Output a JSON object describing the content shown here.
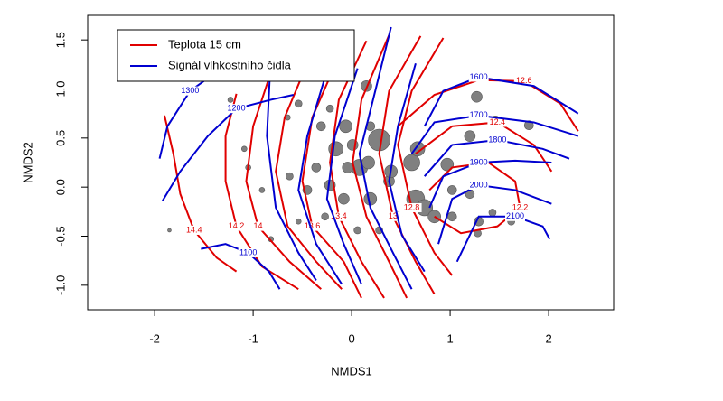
{
  "chart_data": {
    "type": "scatter",
    "xlabel": "NMDS1",
    "ylabel": "NMDS2",
    "xlim": [
      -2.68,
      2.66
    ],
    "ylim": [
      -1.25,
      1.75
    ],
    "xticks": [
      -2,
      -1,
      0,
      1,
      2
    ],
    "yticks": [
      {
        "value": -1,
        "label": "-1.0"
      },
      -0.5,
      {
        "value": 0,
        "label": "0.0"
      },
      0.5,
      {
        "value": 1,
        "label": "1.0"
      },
      1.5
    ],
    "legend": "top-left",
    "points": {
      "color": "#808080",
      "x": [
        0.28,
        0.61,
        0.97,
        1.2,
        1.27,
        1.46,
        1.8,
        0.67,
        0.15,
        -0.06,
        -0.16,
        0.08,
        0.17,
        -0.04,
        -0.36,
        -0.31,
        -0.22,
        -0.54,
        -1.23,
        -1.09,
        -0.91,
        -0.63,
        -0.45,
        -0.22,
        -0.08,
        0.19,
        0.38,
        0.65,
        0.74,
        0.84,
        1.02,
        1.2,
        1.29,
        1.43,
        1.62,
        1.28,
        0.47,
        -0.27,
        -0.54,
        -0.82,
        -1.05,
        0.28,
        0.06,
        0.01,
        0.4,
        -0.65,
        -1.85,
        1.02,
        0.19
      ],
      "y": [
        0.48,
        0.25,
        0.23,
        0.52,
        0.92,
        0.68,
        0.63,
        0.39,
        1.03,
        0.62,
        0.39,
        0.2,
        0.25,
        0.2,
        0.2,
        0.62,
        0.8,
        0.85,
        0.89,
        0.39,
        -0.03,
        0.11,
        -0.03,
        0.02,
        -0.12,
        -0.12,
        0.06,
        -0.12,
        -0.21,
        -0.3,
        -0.03,
        -0.07,
        -0.35,
        -0.26,
        -0.35,
        -0.47,
        -0.3,
        -0.3,
        -0.35,
        -0.53,
        0.2,
        -0.44,
        -0.44,
        0.43,
        0.16,
        0.71,
        -0.44,
        -0.3,
        0.62
      ],
      "size": [
        12,
        9,
        7,
        6,
        6,
        5,
        5,
        8,
        6,
        7,
        8,
        9,
        7,
        6,
        5,
        5,
        4,
        4,
        3,
        3,
        3,
        4,
        5,
        6,
        6,
        7,
        6,
        10,
        9,
        7,
        5,
        5,
        5,
        4,
        4,
        4,
        5,
        4,
        3,
        3,
        3,
        4,
        4,
        6,
        7,
        3,
        2,
        5,
        5
      ]
    },
    "series": [
      {
        "name": "Teplota 15 cm",
        "color": "#e00000",
        "lines": [
          {
            "label": "14.4",
            "x": [
              -1.9,
              -1.81,
              -1.74,
              -1.6,
              -1.37,
              -1.17
            ],
            "y": [
              0.73,
              0.34,
              -0.07,
              -0.44,
              -0.72,
              -0.86
            ]
          },
          {
            "label": "14.2",
            "x": [
              -1.17,
              -1.28,
              -1.28,
              -1.17,
              -0.91,
              -0.54
            ],
            "y": [
              0.95,
              0.52,
              0.06,
              -0.4,
              -0.81,
              -1.04
            ]
          },
          {
            "label": "14",
            "x": [
              -0.82,
              -1.0,
              -1.07,
              -0.95,
              -0.63,
              -0.31
            ],
            "y": [
              1.17,
              0.62,
              0.06,
              -0.4,
              -0.76,
              -1.04
            ]
          },
          {
            "label": null,
            "x": [
              -0.45,
              -0.68,
              -0.77,
              -0.65,
              -0.36,
              -0.1
            ],
            "y": [
              1.26,
              0.71,
              0.16,
              -0.4,
              -0.76,
              -1.04
            ]
          },
          {
            "label": "13.6",
            "x": [
              -0.13,
              -0.4,
              -0.5,
              -0.4,
              -0.08,
              0.1
            ],
            "y": [
              1.33,
              0.71,
              0.06,
              -0.4,
              -0.76,
              -1.13
            ]
          },
          {
            "label": "13.4",
            "x": [
              0.15,
              -0.13,
              -0.22,
              -0.13,
              0.1,
              0.33
            ],
            "y": [
              1.49,
              0.89,
              0.25,
              -0.3,
              -0.76,
              -1.13
            ]
          },
          {
            "label": null,
            "x": [
              0.38,
              0.1,
              0.01,
              0.15,
              0.38,
              0.56
            ],
            "y": [
              1.55,
              0.89,
              0.25,
              -0.3,
              -0.76,
              -1.13
            ]
          },
          {
            "label": "13",
            "x": [
              0.7,
              0.38,
              0.28,
              0.42,
              0.65,
              0.84
            ],
            "y": [
              1.54,
              0.98,
              0.34,
              -0.3,
              -0.76,
              -1.09
            ]
          },
          {
            "label": "12.8",
            "x": [
              0.93,
              0.61,
              0.47,
              0.61,
              0.84,
              1.02
            ],
            "y": [
              1.52,
              0.98,
              0.43,
              -0.21,
              -0.67,
              -0.9
            ]
          },
          {
            "label": "12.6",
            "x": [
              0.47,
              0.84,
              1.29,
              1.75,
              2.12,
              2.3
            ],
            "y": [
              0.62,
              0.94,
              1.09,
              1.08,
              0.85,
              0.57
            ]
          },
          {
            "label": "12.4",
            "x": [
              0.65,
              1.02,
              1.48,
              1.85,
              2.03
            ],
            "y": [
              0.34,
              0.62,
              0.66,
              0.43,
              0.16
            ]
          },
          {
            "label": "12.2",
            "x": [
              0.79,
              1.02,
              1.39,
              1.66,
              1.71,
              1.48,
              1.11,
              0.84
            ],
            "y": [
              -0.03,
              0.2,
              0.25,
              0.06,
              -0.21,
              -0.4,
              -0.47,
              -0.3
            ]
          }
        ]
      },
      {
        "name": "Signál vlhkostního čidla",
        "color": "#0000d0",
        "lines": [
          {
            "label": "1100",
            "x": [
              -1.53,
              -1.28,
              -1.05,
              -0.84,
              -0.73
            ],
            "y": [
              -0.63,
              -0.58,
              -0.67,
              -0.86,
              -1.04
            ]
          },
          {
            "label": "1200",
            "x": [
              -1.92,
              -1.74,
              -1.46,
              -1.17,
              -0.82,
              -0.59
            ],
            "y": [
              -0.14,
              0.16,
              0.52,
              0.8,
              0.89,
              0.94
            ]
          },
          {
            "label": "1300",
            "x": [
              -1.95,
              -1.87,
              -1.64,
              -1.32
            ],
            "y": [
              0.29,
              0.62,
              0.98,
              1.21
            ]
          },
          {
            "label": null,
            "x": [
              -0.82,
              -0.86,
              -0.77,
              -0.54,
              -0.36
            ],
            "y": [
              1.35,
              0.52,
              -0.21,
              -0.67,
              -0.95
            ]
          },
          {
            "label": null,
            "x": [
              -0.27,
              -0.45,
              -0.54,
              -0.36,
              -0.1
            ],
            "y": [
              1.12,
              0.52,
              -0.03,
              -0.58,
              -0.99
            ]
          },
          {
            "label": null,
            "x": [
              0.06,
              -0.17,
              -0.25,
              -0.08,
              0.1
            ],
            "y": [
              1.21,
              0.52,
              -0.12,
              -0.58,
              -0.99
            ]
          },
          {
            "label": null,
            "x": [
              0.4,
              0.24,
              0.08,
              0.19,
              0.42,
              0.61
            ],
            "y": [
              1.63,
              0.98,
              0.34,
              -0.21,
              -0.67,
              -1.04
            ]
          },
          {
            "label": null,
            "x": [
              0.65,
              0.47,
              0.38,
              0.51,
              0.74
            ],
            "y": [
              1.26,
              0.62,
              0.06,
              -0.49,
              -0.86
            ]
          },
          {
            "label": "1600",
            "x": [
              0.74,
              0.93,
              1.29,
              1.85,
              2.3
            ],
            "y": [
              0.62,
              0.98,
              1.12,
              1.03,
              0.75
            ]
          },
          {
            "label": "1700",
            "x": [
              0.61,
              0.84,
              1.29,
              1.85,
              2.3
            ],
            "y": [
              0.34,
              0.66,
              0.73,
              0.66,
              0.52
            ]
          },
          {
            "label": "1800",
            "x": [
              0.74,
              1.02,
              1.48,
              1.94,
              2.21
            ],
            "y": [
              0.11,
              0.43,
              0.48,
              0.39,
              0.29
            ]
          },
          {
            "label": "1900",
            "x": [
              0.79,
              0.93,
              1.29,
              1.66,
              2.03
            ],
            "y": [
              -0.21,
              0.11,
              0.25,
              0.27,
              0.25
            ]
          },
          {
            "label": "2000",
            "x": [
              0.88,
              1.02,
              1.29,
              1.66,
              2.03
            ],
            "y": [
              -0.58,
              -0.12,
              0.02,
              -0.03,
              -0.17
            ]
          },
          {
            "label": "2100",
            "x": [
              1.07,
              1.29,
              1.66,
              1.94,
              2.01
            ],
            "y": [
              -0.76,
              -0.3,
              -0.3,
              -0.4,
              -0.53
            ]
          }
        ]
      }
    ]
  }
}
